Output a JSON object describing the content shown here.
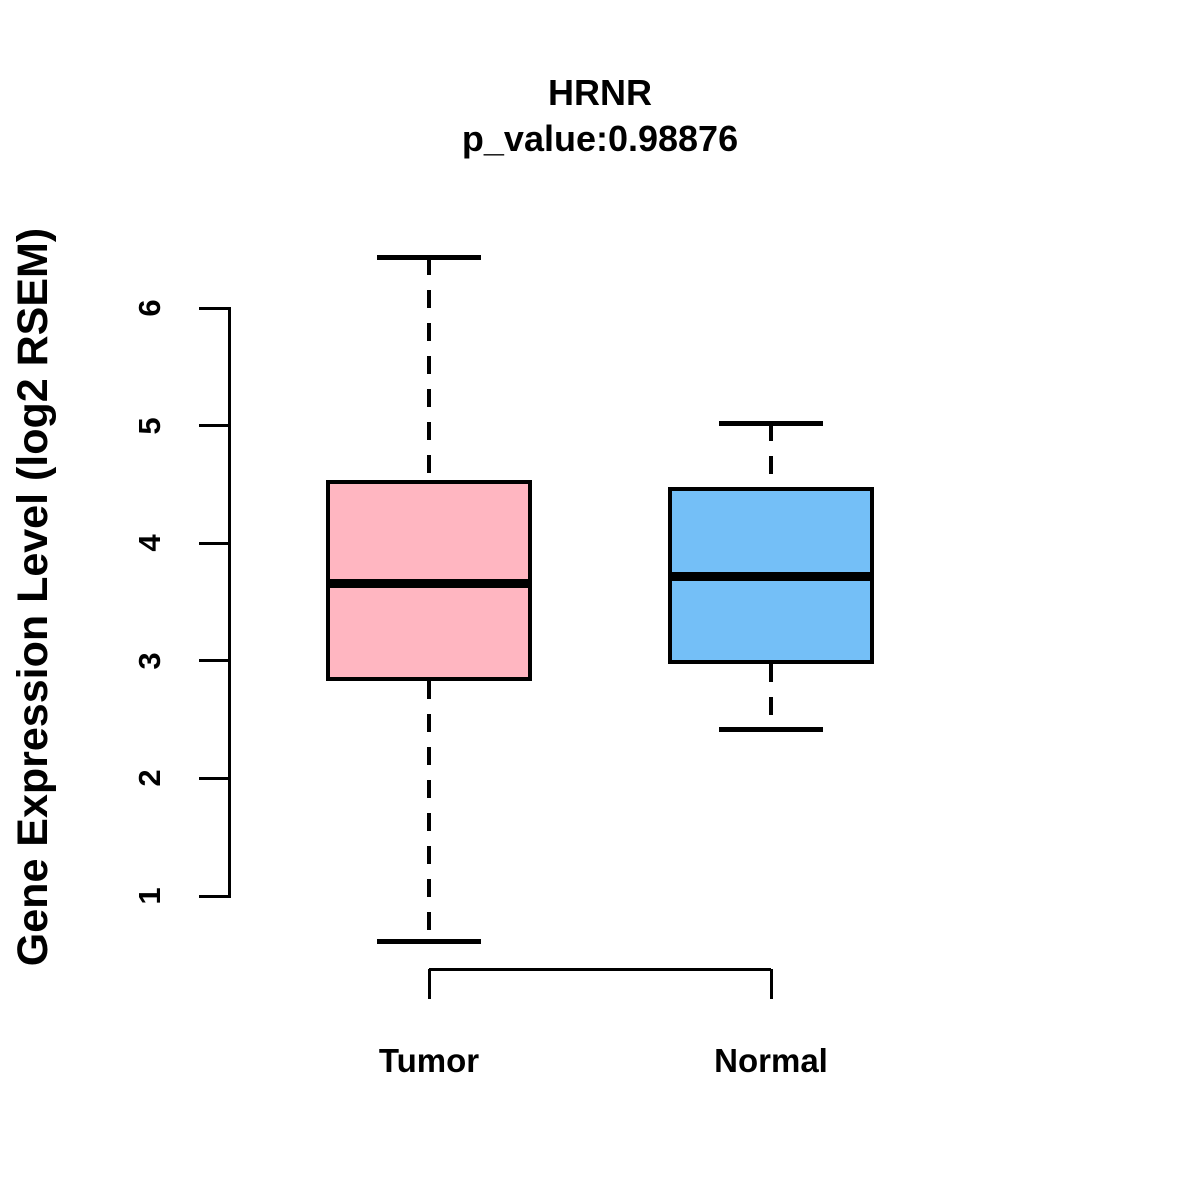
{
  "title": "HRNR",
  "subtitle": "p_value:0.98876",
  "ylabel": "Gene Expression Level (log2 RSEM)",
  "chart_data": {
    "type": "boxplot",
    "title": "HRNR",
    "subtitle": "p_value:0.98876",
    "ylabel": "Gene Expression Level (log2 RSEM)",
    "xlabel": "",
    "categories": [
      "Tumor",
      "Normal"
    ],
    "yticks": [
      1,
      2,
      3,
      4,
      5,
      6
    ],
    "ylim": [
      0.5,
      6.6
    ],
    "grid": false,
    "legend": "none",
    "series": [
      {
        "name": "Tumor",
        "whisker_low": 0.61,
        "q1": 2.83,
        "median": 3.66,
        "q3": 4.54,
        "whisker_high": 6.43,
        "fill_color": "#FFB6C1"
      },
      {
        "name": "Normal",
        "whisker_low": 2.42,
        "q1": 2.97,
        "median": 3.72,
        "q3": 4.48,
        "whisker_high": 5.02,
        "fill_color": "#74BFF7"
      }
    ],
    "stroke_color": "#000000",
    "background_color": "#FFFFFF"
  }
}
